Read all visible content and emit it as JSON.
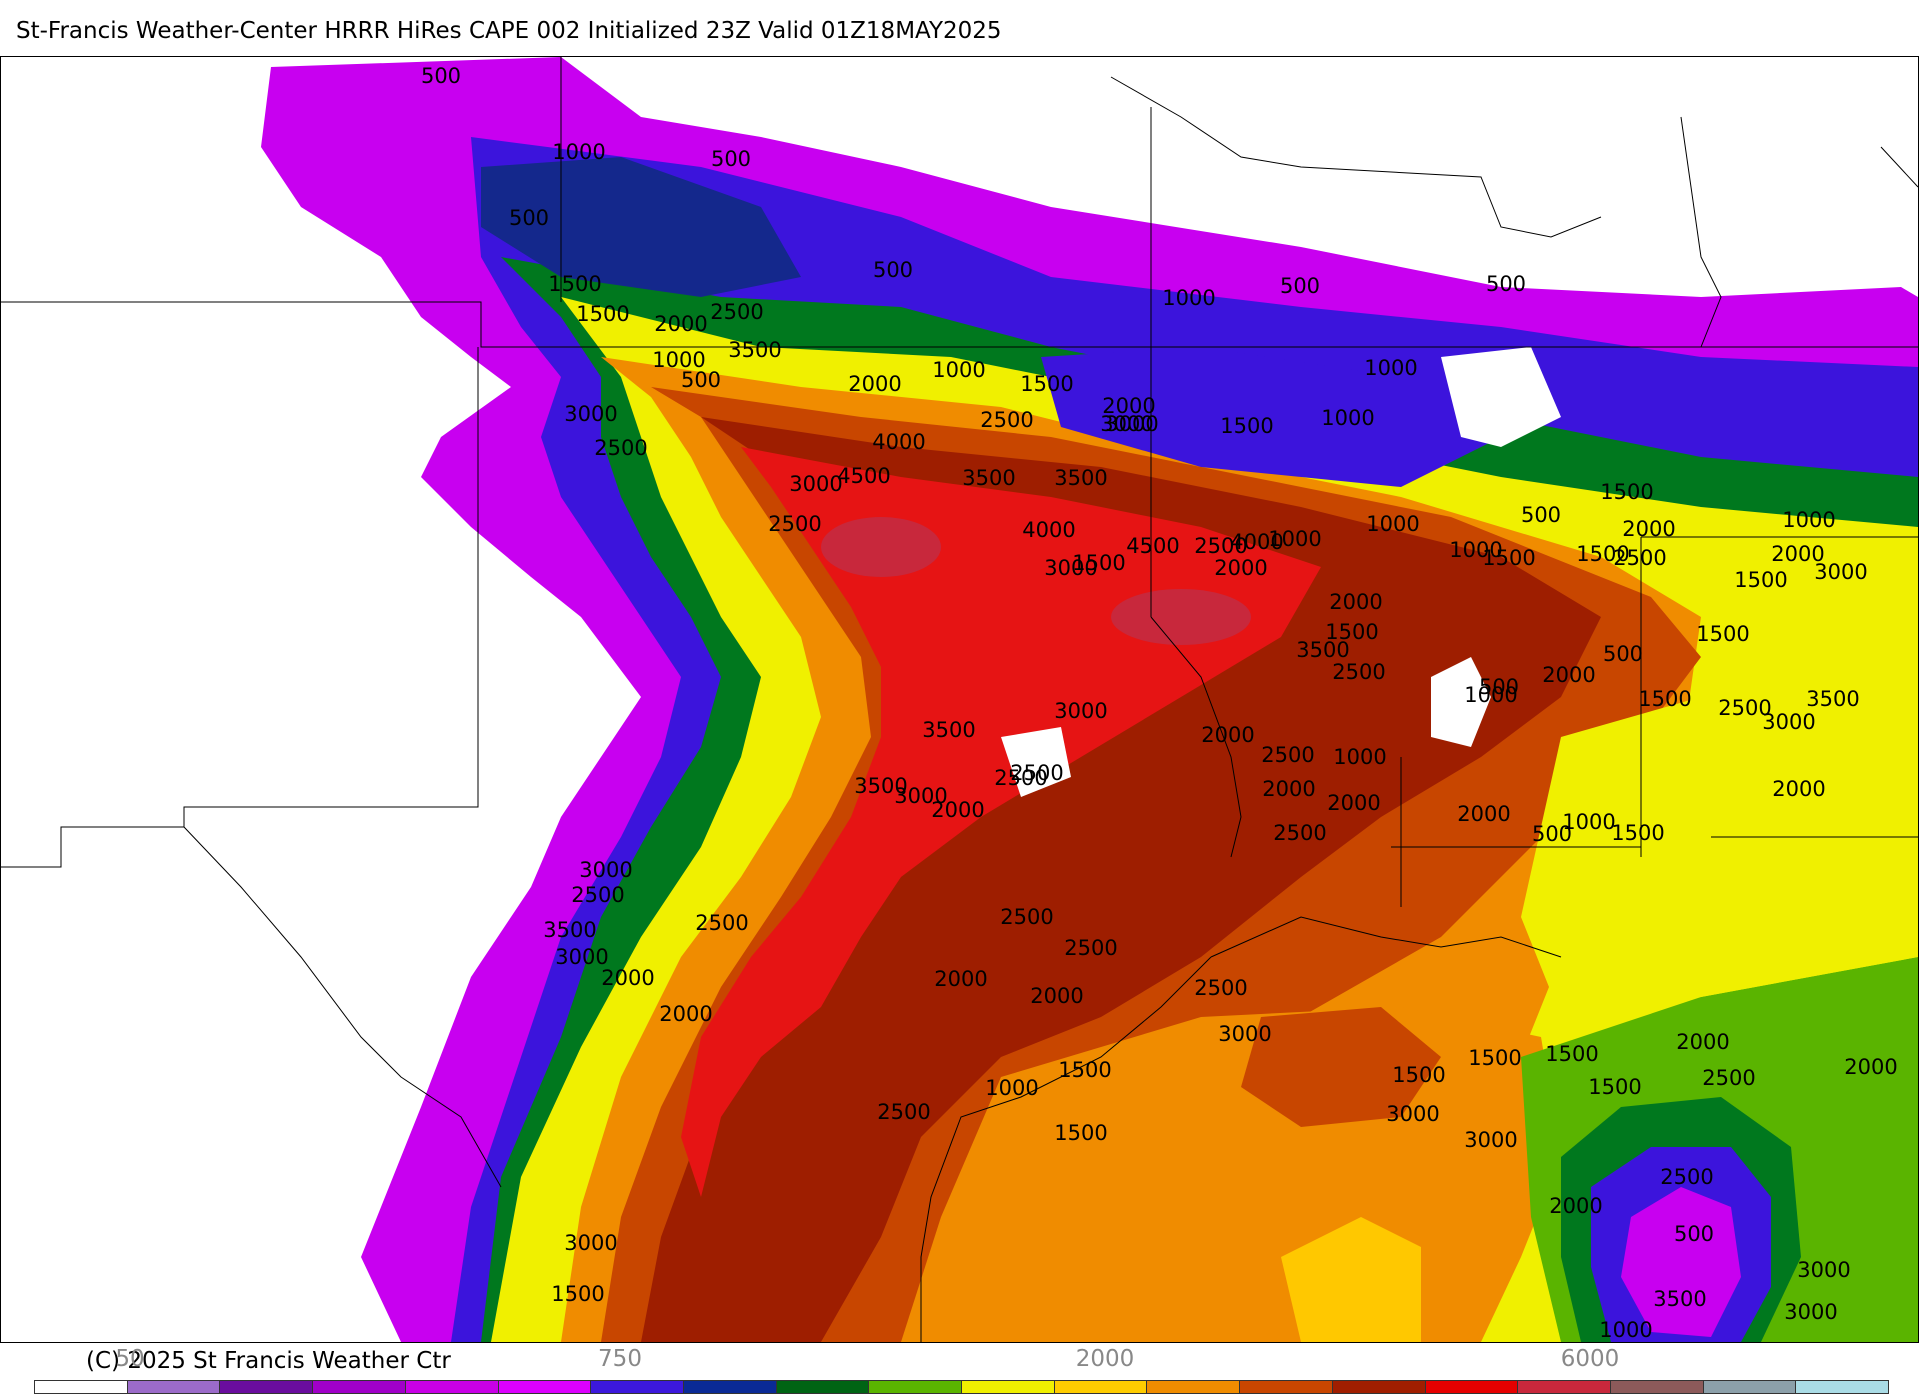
{
  "title": "St-Francis Weather-Center HRRR HiRes CAPE  002 Initialized  23Z Valid 01Z18MAY2025",
  "copyright": "(C) 2025 St Francis Weather Ctr",
  "colorbar": {
    "colors": [
      "#ffffff",
      "#9b6bc9",
      "#6a0d9e",
      "#a000c8",
      "#c800e6",
      "#dc00ff",
      "#3c18dc",
      "#0a2a96",
      "#006414",
      "#5ab400",
      "#f0f000",
      "#ffcc00",
      "#f08c00",
      "#c84600",
      "#a01e00",
      "#e60000",
      "#c8283c",
      "#8c5a5a",
      "#8ca0aa",
      "#aadce6"
    ],
    "tick_labels": [
      "50",
      "750",
      "2000",
      "6000"
    ]
  },
  "map": {
    "field_colors": {
      "background": "#ffffff",
      "cape_500": "#c800f0",
      "cape_1000": "#3c14dc",
      "cape_1000_dark": "#14288c",
      "cape_1500": "#00781e",
      "cape_1500_light": "#5ab400",
      "cape_2000": "#f0f000",
      "cape_2000_gold": "#ffc800",
      "cape_2500": "#f08c00",
      "cape_3000": "#c84600",
      "cape_3500": "#9e1e00",
      "cape_4000": "#e61414",
      "cape_4500": "#c8283c",
      "border": "#000000"
    },
    "contour_labels": [
      {
        "text": "500",
        "cape": 500
      },
      {
        "text": "1000",
        "cape": 1000
      },
      {
        "text": "500",
        "cape": 500
      },
      {
        "text": "500",
        "cape": 500
      },
      {
        "text": "1500",
        "cape": 1500
      },
      {
        "text": "500",
        "cape": 500
      },
      {
        "text": "1000",
        "cape": 1000
      },
      {
        "text": "500",
        "cape": 500
      },
      {
        "text": "500",
        "cape": 500
      },
      {
        "text": "1500",
        "cape": 1500
      },
      {
        "text": "2000",
        "cape": 2000
      },
      {
        "text": "2500",
        "cape": 2500
      },
      {
        "text": "3500",
        "cape": 3500
      },
      {
        "text": "1000",
        "cape": 1000
      },
      {
        "text": "500",
        "cape": 500
      },
      {
        "text": "3000",
        "cape": 3000
      },
      {
        "text": "2000",
        "cape": 2000
      },
      {
        "text": "1000",
        "cape": 1000
      },
      {
        "text": "1500",
        "cape": 1500
      },
      {
        "text": "2000",
        "cape": 2000
      },
      {
        "text": "2500",
        "cape": 2500
      },
      {
        "text": "3000",
        "cape": 3000
      },
      {
        "text": "1500",
        "cape": 1500
      },
      {
        "text": "1000",
        "cape": 1000
      },
      {
        "text": "1000",
        "cape": 1000
      },
      {
        "text": "3000",
        "cape": 3000
      },
      {
        "text": "2500",
        "cape": 2500
      },
      {
        "text": "4000",
        "cape": 4000
      },
      {
        "text": "4500",
        "cape": 4500
      },
      {
        "text": "3500",
        "cape": 3500
      },
      {
        "text": "3500",
        "cape": 3500
      },
      {
        "text": "3000",
        "cape": 3000
      },
      {
        "text": "2500",
        "cape": 2500
      },
      {
        "text": "4000",
        "cape": 4000
      },
      {
        "text": "4500",
        "cape": 4500
      },
      {
        "text": "2500",
        "cape": 2500
      },
      {
        "text": "4000",
        "cape": 4000
      },
      {
        "text": "1500",
        "cape": 1500
      },
      {
        "text": "3000",
        "cape": 3000
      },
      {
        "text": "2000",
        "cape": 2000
      },
      {
        "text": "1000",
        "cape": 1000
      },
      {
        "text": "1000",
        "cape": 1000
      },
      {
        "text": "500",
        "cape": 500
      },
      {
        "text": "1500",
        "cape": 1500
      },
      {
        "text": "2000",
        "cape": 2000
      },
      {
        "text": "1000",
        "cape": 1000
      },
      {
        "text": "1500",
        "cape": 1500
      },
      {
        "text": "2500",
        "cape": 2500
      },
      {
        "text": "1500",
        "cape": 1500
      },
      {
        "text": "2000",
        "cape": 2000
      },
      {
        "text": "1500",
        "cape": 1500
      },
      {
        "text": "3000",
        "cape": 3000
      },
      {
        "text": "1000",
        "cape": 1000
      },
      {
        "text": "500",
        "cape": 500
      },
      {
        "text": "2000",
        "cape": 2000
      },
      {
        "text": "1500",
        "cape": 1500
      },
      {
        "text": "3500",
        "cape": 3500
      },
      {
        "text": "2500",
        "cape": 2500
      },
      {
        "text": "1000",
        "cape": 1000
      },
      {
        "text": "2000",
        "cape": 2000
      },
      {
        "text": "500",
        "cape": 500
      },
      {
        "text": "1500",
        "cape": 1500
      },
      {
        "text": "1500",
        "cape": 1500
      },
      {
        "text": "2500",
        "cape": 2500
      },
      {
        "text": "3500",
        "cape": 3500
      },
      {
        "text": "3000",
        "cape": 3000
      },
      {
        "text": "4000",
        "cape": 4000
      },
      {
        "text": "3500",
        "cape": 3500
      },
      {
        "text": "3000",
        "cape": 3000
      },
      {
        "text": "2500",
        "cape": 2500
      },
      {
        "text": "3500",
        "cape": 3500
      },
      {
        "text": "3000",
        "cape": 3000
      },
      {
        "text": "2000",
        "cape": 2000
      },
      {
        "text": "2500",
        "cape": 2500
      },
      {
        "text": "2000",
        "cape": 2000
      },
      {
        "text": "2500",
        "cape": 2500
      },
      {
        "text": "2000",
        "cape": 2000
      },
      {
        "text": "1000",
        "cape": 1000
      },
      {
        "text": "2000",
        "cape": 2000
      },
      {
        "text": "2500",
        "cape": 2500
      },
      {
        "text": "2000",
        "cape": 2000
      },
      {
        "text": "500",
        "cape": 500
      },
      {
        "text": "1000",
        "cape": 1000
      },
      {
        "text": "1500",
        "cape": 1500
      },
      {
        "text": "2000",
        "cape": 2000
      },
      {
        "text": "3000",
        "cape": 3000
      },
      {
        "text": "2500",
        "cape": 2500
      },
      {
        "text": "3500",
        "cape": 3500
      },
      {
        "text": "3000",
        "cape": 3000
      },
      {
        "text": "2000",
        "cape": 2000
      },
      {
        "text": "2500",
        "cape": 2500
      },
      {
        "text": "2000",
        "cape": 2000
      },
      {
        "text": "2500",
        "cape": 2500
      },
      {
        "text": "2500",
        "cape": 2500
      },
      {
        "text": "2000",
        "cape": 2000
      },
      {
        "text": "2000",
        "cape": 2000
      },
      {
        "text": "2500",
        "cape": 2500
      },
      {
        "text": "3000",
        "cape": 3000
      },
      {
        "text": "1500",
        "cape": 1500
      },
      {
        "text": "1500",
        "cape": 1500
      },
      {
        "text": "1500",
        "cape": 1500
      },
      {
        "text": "2000",
        "cape": 2000
      },
      {
        "text": "1500",
        "cape": 1500
      },
      {
        "text": "2000",
        "cape": 2000
      },
      {
        "text": "2500",
        "cape": 2500
      },
      {
        "text": "3000",
        "cape": 3000
      },
      {
        "text": "3000",
        "cape": 3000
      },
      {
        "text": "2500",
        "cape": 2500
      },
      {
        "text": "1000",
        "cape": 1000
      },
      {
        "text": "1500",
        "cape": 1500
      },
      {
        "text": "1500",
        "cape": 1500
      },
      {
        "text": "2500",
        "cape": 2500
      },
      {
        "text": "2000",
        "cape": 2000
      },
      {
        "text": "3500",
        "cape": 3500
      },
      {
        "text": "3000",
        "cape": 3000
      },
      {
        "text": "3000",
        "cape": 3000
      },
      {
        "text": "1500",
        "cape": 1500
      },
      {
        "text": "500",
        "cape": 500
      },
      {
        "text": "3000",
        "cape": 3000
      },
      {
        "text": "1000",
        "cape": 1000
      }
    ]
  }
}
